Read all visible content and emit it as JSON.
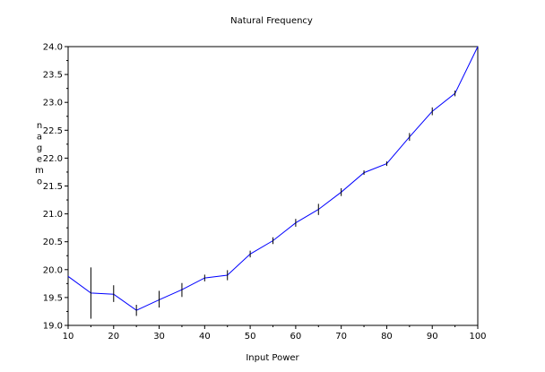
{
  "chart_data": {
    "type": "line",
    "title": "Natural Frequency",
    "xlabel": "Input Power",
    "ylabel": "omegan",
    "ylabel_vertical_letters": [
      "n",
      "a",
      "g",
      "e",
      "m",
      "o"
    ],
    "xlim": [
      10,
      100
    ],
    "ylim": [
      19.0,
      24.0
    ],
    "xticks": [
      10,
      20,
      30,
      40,
      50,
      60,
      70,
      80,
      90,
      100
    ],
    "yticks": [
      "19.0",
      "19.5",
      "20.0",
      "20.5",
      "21.0",
      "21.5",
      "22.0",
      "22.5",
      "23.0",
      "23.5",
      "24.0"
    ],
    "grid": false,
    "series": [
      {
        "color": "#0000ff",
        "x": [
          10,
          15,
          20,
          25,
          30,
          35,
          40,
          45,
          50,
          55,
          60,
          65,
          70,
          75,
          80,
          85,
          90,
          95,
          100
        ],
        "y": [
          19.88,
          19.58,
          19.56,
          19.27,
          19.46,
          19.64,
          19.85,
          19.9,
          20.28,
          20.52,
          20.84,
          21.08,
          21.39,
          21.74,
          21.9,
          22.38,
          22.84,
          23.16,
          24.0
        ],
        "err_low": [
          null,
          19.12,
          19.42,
          19.17,
          19.32,
          19.51,
          19.79,
          19.81,
          20.22,
          20.46,
          20.77,
          20.98,
          21.32,
          21.7,
          21.86,
          22.31,
          22.77,
          23.11,
          null
        ],
        "err_high": [
          null,
          20.04,
          19.72,
          19.37,
          19.62,
          19.76,
          19.91,
          19.99,
          20.34,
          20.58,
          20.91,
          21.18,
          21.46,
          21.78,
          21.94,
          22.45,
          22.91,
          23.21,
          null
        ]
      }
    ],
    "error_bar_color": "#000000",
    "axis_color": "#000000"
  }
}
